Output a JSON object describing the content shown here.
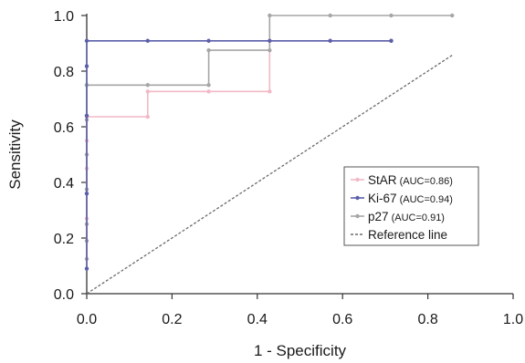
{
  "chart_data": {
    "type": "line",
    "title": "",
    "xlabel": "1 - Specificity",
    "ylabel": "Sensitivity",
    "xlim": [
      0,
      1
    ],
    "ylim": [
      0,
      1
    ],
    "x_ticks": [
      "0.0",
      "0.2",
      "0.4",
      "0.6",
      "0.8",
      "1.0"
    ],
    "y_ticks": [
      "0.0",
      "0.2",
      "0.4",
      "0.6",
      "0.8",
      "1.0"
    ],
    "grid": false,
    "legend_position": "right",
    "series": [
      {
        "name": "StAR",
        "auc_label": "(AUC=0.86)",
        "color": "#f2b8c6",
        "marker": "dot",
        "x": [
          0,
          0,
          0,
          0,
          0,
          0.143,
          0.143,
          0.286,
          0.429,
          0.429,
          0.571,
          0.714
        ],
        "y": [
          0.09,
          0.27,
          0.45,
          0.55,
          0.636,
          0.636,
          0.727,
          0.727,
          0.727,
          0.909,
          0.909,
          0.909
        ]
      },
      {
        "name": "Ki-67",
        "auc_label": "(AUC=0.94)",
        "color": "#5a5fa8",
        "marker": "dot",
        "x": [
          0,
          0,
          0,
          0,
          0,
          0.143,
          0.286,
          0.429,
          0.571,
          0.714,
          0.714
        ],
        "y": [
          0.09,
          0.36,
          0.64,
          0.818,
          0.909,
          0.909,
          0.909,
          0.909,
          0.909,
          0.909,
          0.909
        ]
      },
      {
        "name": "p27",
        "auc_label": "(AUC=0.91)",
        "color": "#a6a6a6",
        "marker": "dot",
        "x": [
          0,
          0,
          0,
          0,
          0,
          0,
          0,
          0,
          0,
          0.143,
          0.286,
          0.286,
          0.429,
          0.429,
          0.571,
          0.714,
          0.857
        ],
        "y": [
          0.125,
          0.19,
          0.25,
          0.375,
          0.5,
          0.625,
          0.75,
          0.75,
          0.75,
          0.75,
          0.75,
          0.875,
          0.875,
          1.0,
          1.0,
          1.0,
          1.0
        ]
      },
      {
        "name": "Reference line",
        "auc_label": "",
        "color": "#6b6b6b",
        "marker": "none",
        "dashed": true,
        "x": [
          0,
          0.857
        ],
        "y": [
          0,
          0.857
        ]
      }
    ]
  }
}
